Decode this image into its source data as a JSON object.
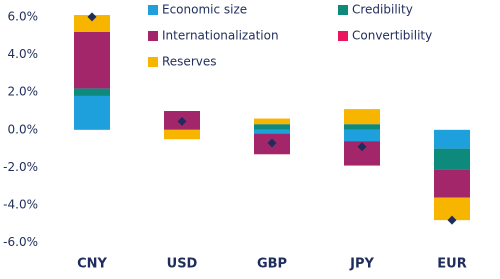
{
  "chart_data": {
    "type": "bar",
    "stacked": true,
    "categories": [
      "CNY",
      "USD",
      "GBP",
      "JPY",
      "EUR"
    ],
    "series": [
      {
        "name": "Economic size",
        "color": "#1ea0dc",
        "values": [
          1.8,
          0,
          -0.2,
          -0.6,
          -1.0
        ]
      },
      {
        "name": "Credibility",
        "color": "#0e8a7d",
        "values": [
          0.4,
          0,
          0.3,
          0.3,
          -1.1
        ]
      },
      {
        "name": "Internationalization",
        "color": "#a3266b",
        "values": [
          3.0,
          1.0,
          -1.1,
          -1.3,
          -1.5
        ]
      },
      {
        "name": "Convertibility",
        "color": "#e8175d",
        "values": [
          0,
          0,
          0,
          0,
          0
        ]
      },
      {
        "name": "Reserves",
        "color": "#f7b500",
        "values": [
          0.9,
          -0.5,
          0.3,
          0.8,
          -1.2
        ]
      }
    ],
    "markers": {
      "color": "#1f2d5c",
      "values": [
        6.0,
        0.45,
        -0.7,
        -0.9,
        -4.8
      ]
    },
    "ylim": [
      -6.6,
      6.9
    ],
    "yticks": [
      {
        "value": 6,
        "label": "6.0%"
      },
      {
        "value": 4,
        "label": "4.0%"
      },
      {
        "value": 2,
        "label": "2.0%"
      },
      {
        "value": 0,
        "label": "0.0%"
      },
      {
        "value": -2,
        "label": "-2.0%"
      },
      {
        "value": -4,
        "label": "-4.0%"
      },
      {
        "value": -6,
        "label": "-6.0%"
      }
    ],
    "grid": false
  }
}
